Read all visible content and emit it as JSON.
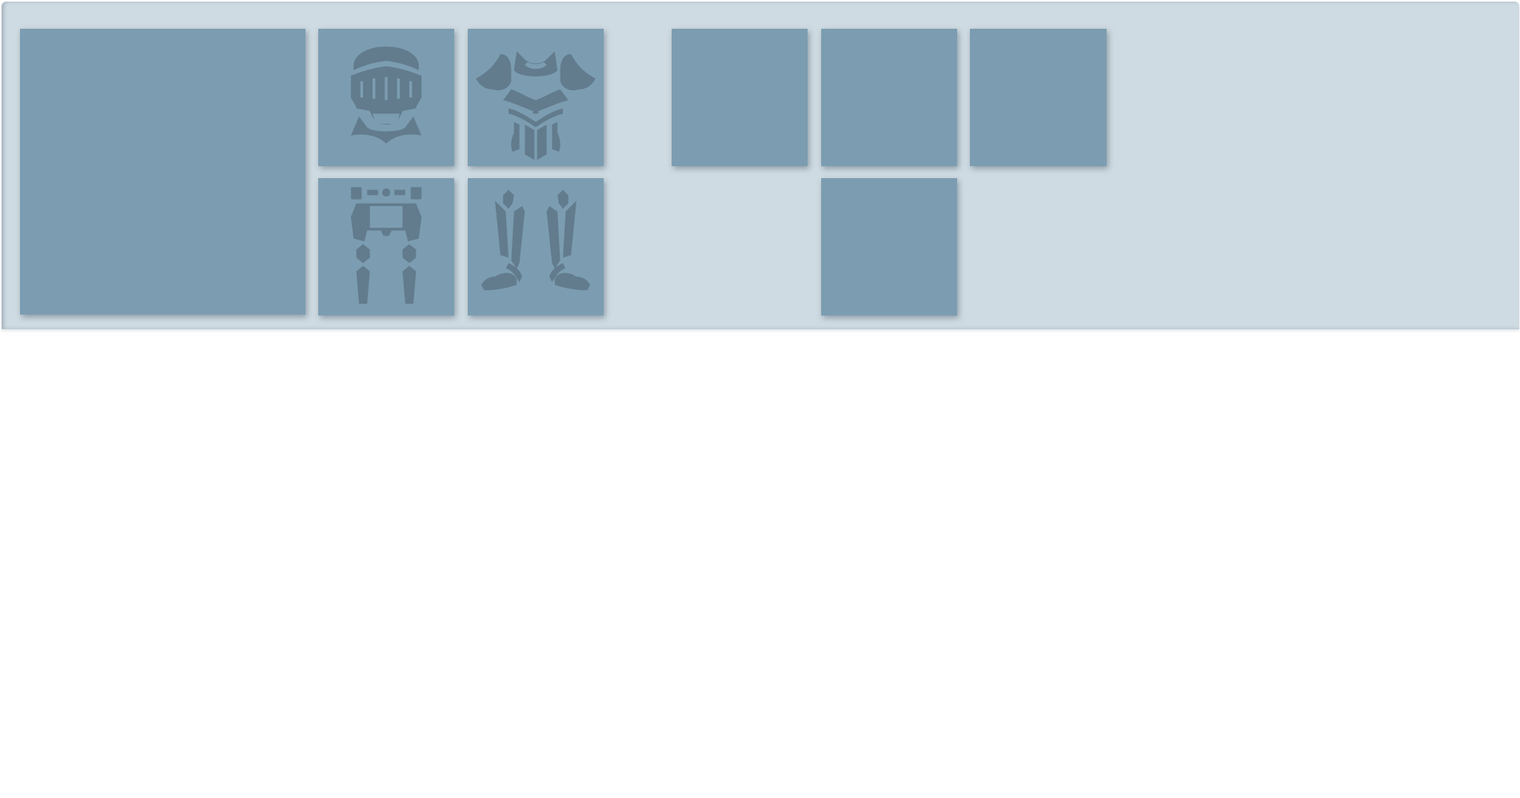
{
  "inventory": {
    "colors": {
      "panel": "#cfdbe2",
      "slot": "#7c9db1",
      "icon": "#627c8d"
    },
    "portrait_slot": {
      "name": "character-portrait-slot"
    },
    "equipment_slots": [
      {
        "key": "helmet",
        "icon": "knight-helmet-icon"
      },
      {
        "key": "chest",
        "icon": "chest-armor-icon"
      },
      {
        "key": "legs",
        "icon": "leg-armor-icon"
      },
      {
        "key": "boots",
        "icon": "greaves-boots-icon"
      }
    ],
    "accessory_slots": [
      {
        "key": "accessory-1"
      },
      {
        "key": "accessory-2"
      },
      {
        "key": "accessory-3"
      },
      {
        "key": "accessory-4"
      }
    ]
  }
}
